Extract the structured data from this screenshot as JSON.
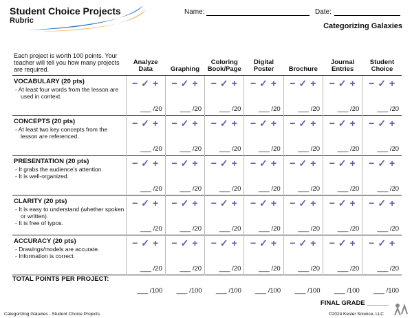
{
  "header": {
    "title": "Student Choice Projects",
    "subtitle": "Rubric",
    "name_label": "Name:",
    "date_label": "Date:",
    "topic": "Categorizing Galaxies"
  },
  "table": {
    "intro": "Each project is worth 100 points. Your teacher will tell you how many projects are required.",
    "columns": [
      "Analyze Data",
      "Graphing",
      "Coloring Book/Page",
      "Digital Poster",
      "Brochure",
      "Journal Entries",
      "Student Choice"
    ],
    "rating_marks": [
      "−",
      "✓",
      "+"
    ],
    "rows": [
      {
        "title": "VOCABULARY (20 pts)",
        "bullets": [
          "- At least four words from the lesson are used in context."
        ],
        "score": "___ /20"
      },
      {
        "title": "CONCEPTS (20 pts)",
        "bullets": [
          "- At least two key concepts from the lesson are referenced."
        ],
        "score": "___ /20"
      },
      {
        "title": "PRESENTATION (20 pts)",
        "bullets": [
          "- It grabs the audience's attention.",
          "- It is well-organized."
        ],
        "score": "___ /20"
      },
      {
        "title": "CLARITY (20 pts)",
        "bullets": [
          "- It is easy to understand (whether spoken or written).",
          "- It is free of typos."
        ],
        "score": "___ /20"
      },
      {
        "title": "ACCURACY (20 pts)",
        "bullets": [
          "- Drawings/models are accurate.",
          "- Information is correct."
        ],
        "score": "___ /20"
      }
    ],
    "total_label": "TOTAL POINTS PER PROJECT:",
    "total_score": "___ /100"
  },
  "footer": {
    "final_grade": "FINAL GRADE ______",
    "left": "Categorizing Galaxies - Student Choice Projects",
    "right": "©2024 Kesler Science, LLC"
  }
}
